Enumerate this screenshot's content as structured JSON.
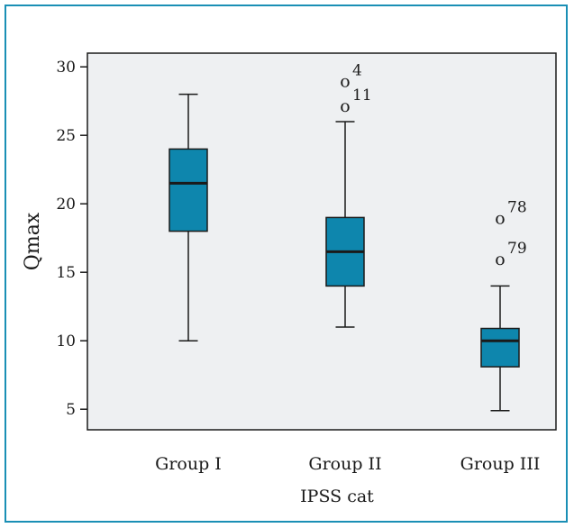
{
  "chart_data": {
    "type": "boxplot",
    "xlabel": "IPSS cat",
    "ylabel": "Qmax",
    "ylim": [
      3.5,
      31
    ],
    "yticks": [
      5,
      10,
      15,
      20,
      25,
      30
    ],
    "grid": false,
    "colors": {
      "box_fill": "#0e86ad",
      "plot_bg": "#eef0f2",
      "frame": "#1a8fb5"
    },
    "outlier_symbol": "o",
    "groups": [
      {
        "category": "Group I",
        "whisker_low": 10,
        "q1": 18,
        "median": 21.5,
        "q3": 24,
        "whisker_high": 28,
        "outliers": []
      },
      {
        "category": "Group II",
        "whisker_low": 11,
        "q1": 14,
        "median": 16.5,
        "q3": 19,
        "whisker_high": 26,
        "outliers": [
          {
            "value": 29,
            "id": "4"
          },
          {
            "value": 27.2,
            "id": "11"
          }
        ]
      },
      {
        "category": "Group III",
        "whisker_low": 4.9,
        "q1": 8.1,
        "median": 10,
        "q3": 10.9,
        "whisker_high": 14,
        "outliers": [
          {
            "value": 19,
            "id": "78"
          },
          {
            "value": 16,
            "id": "79"
          }
        ]
      }
    ]
  }
}
